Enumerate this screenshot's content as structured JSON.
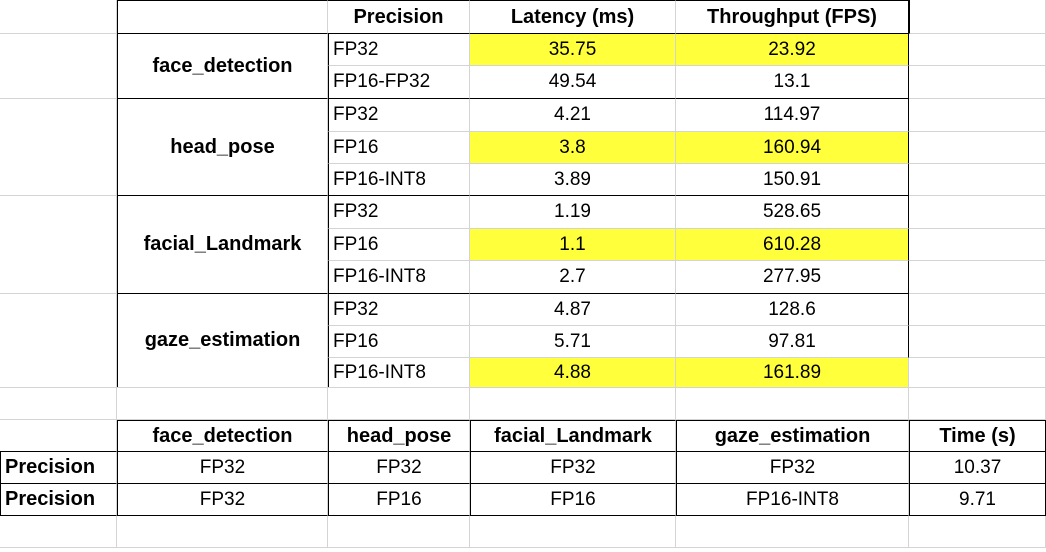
{
  "top_table": {
    "headers": [
      "Precision",
      "Latency (ms)",
      "Throughput (FPS)"
    ],
    "models": [
      {
        "name": "face_detection",
        "rows": [
          {
            "precision": "FP32",
            "latency": "35.75",
            "throughput": "23.92",
            "highlight": true
          },
          {
            "precision": "FP16-FP32",
            "latency": "49.54",
            "throughput": "13.1",
            "highlight": false
          }
        ]
      },
      {
        "name": "head_pose",
        "rows": [
          {
            "precision": "FP32",
            "latency": "4.21",
            "throughput": "114.97",
            "highlight": false
          },
          {
            "precision": "FP16",
            "latency": "3.8",
            "throughput": "160.94",
            "highlight": true
          },
          {
            "precision": "FP16-INT8",
            "latency": "3.89",
            "throughput": "150.91",
            "highlight": false
          }
        ]
      },
      {
        "name": "facial_Landmark",
        "rows": [
          {
            "precision": "FP32",
            "latency": "1.19",
            "throughput": "528.65",
            "highlight": false
          },
          {
            "precision": "FP16",
            "latency": "1.1",
            "throughput": "610.28",
            "highlight": true
          },
          {
            "precision": "FP16-INT8",
            "latency": "2.7",
            "throughput": "277.95",
            "highlight": false
          }
        ]
      },
      {
        "name": "gaze_estimation",
        "rows": [
          {
            "precision": "FP32",
            "latency": "4.87",
            "throughput": "128.6",
            "highlight": false
          },
          {
            "precision": "FP16",
            "latency": "5.71",
            "throughput": "97.81",
            "highlight": false
          },
          {
            "precision": "FP16-INT8",
            "latency": "4.88",
            "throughput": "161.89",
            "highlight": true
          }
        ]
      }
    ]
  },
  "bottom_table": {
    "headers": [
      "face_detection",
      "head_pose",
      "facial_Landmark",
      "gaze_estimation",
      "Time (s)"
    ],
    "rows": [
      {
        "label": "Precision",
        "values": [
          "FP32",
          "FP32",
          "FP32",
          "FP32",
          "10.37"
        ]
      },
      {
        "label": "Precision",
        "values": [
          "FP32",
          "FP16",
          "FP16",
          "FP16-INT8",
          "9.71"
        ]
      }
    ]
  },
  "colors": {
    "highlight": "#ffff3c",
    "gridline": "#d4d4d4",
    "border": "#000000"
  }
}
